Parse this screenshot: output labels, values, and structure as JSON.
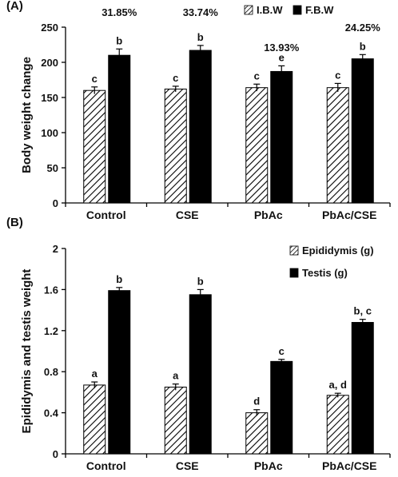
{
  "chart_data": [
    {
      "panel_label": "(A)",
      "type": "bar",
      "categories": [
        "Control",
        "CSE",
        "PbAc",
        "PbAc/CSE"
      ],
      "ylabel": "Body weight change",
      "xlabel": "",
      "ylim": [
        0,
        250
      ],
      "yticks": [
        0,
        50,
        100,
        150,
        200,
        250
      ],
      "legend_position": "top-right",
      "grid": false,
      "series": [
        {
          "name": "I.B.W",
          "pattern": "hatched",
          "values": [
            160,
            162,
            164,
            164
          ],
          "errors": [
            5,
            4,
            5,
            6
          ],
          "labels": [
            "c",
            "c",
            "c",
            "c"
          ]
        },
        {
          "name": "F.B.W",
          "pattern": "solid",
          "color": "#000000",
          "values": [
            210,
            217,
            187,
            205
          ],
          "errors": [
            9,
            7,
            8,
            6
          ],
          "labels": [
            "b",
            "b",
            "e",
            "b"
          ]
        }
      ],
      "annotations": [
        "31.85%",
        "33.74%",
        "13.93%",
        "24.25%"
      ]
    },
    {
      "panel_label": "(B)",
      "type": "bar",
      "categories": [
        "Control",
        "CSE",
        "PbAc",
        "PbAc/CSE"
      ],
      "ylabel": "Epididymis and testis weight",
      "xlabel": "",
      "ylim": [
        0,
        2
      ],
      "yticks": [
        "0",
        "0.4",
        "0.8",
        "1.2",
        "1.6",
        "2"
      ],
      "legend_position": "top-right",
      "grid": false,
      "series": [
        {
          "name": "Epididymis (g)",
          "pattern": "hatched",
          "values": [
            0.67,
            0.65,
            0.4,
            0.57
          ],
          "errors": [
            0.03,
            0.03,
            0.03,
            0.02
          ],
          "labels": [
            "a",
            "a",
            "d",
            "a, d"
          ]
        },
        {
          "name": "Testis (g)",
          "pattern": "solid",
          "color": "#000000",
          "values": [
            1.59,
            1.55,
            0.9,
            1.28
          ],
          "errors": [
            0.03,
            0.05,
            0.02,
            0.03
          ],
          "labels": [
            "b",
            "b",
            "c",
            "b, c"
          ]
        }
      ]
    }
  ]
}
